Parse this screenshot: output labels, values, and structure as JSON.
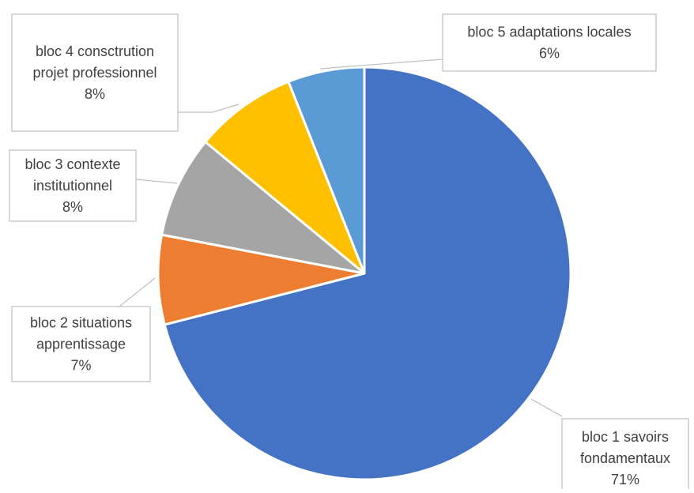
{
  "chart_data": {
    "type": "pie",
    "title": "",
    "slices": [
      {
        "label_lines": [
          "bloc 1 savoirs",
          "fondamentaux"
        ],
        "percent_label": "71%",
        "value": 71,
        "color": "#4472C4"
      },
      {
        "label_lines": [
          "bloc 2 situations",
          "apprentissage"
        ],
        "percent_label": "7%",
        "value": 7,
        "color": "#ED7D31"
      },
      {
        "label_lines": [
          "bloc 3 contexte",
          "institutionnel"
        ],
        "percent_label": "8%",
        "value": 8,
        "color": "#A5A5A5"
      },
      {
        "label_lines": [
          "bloc 4 consctrution",
          "projet professionnel"
        ],
        "percent_label": "8%",
        "value": 8,
        "color": "#FFC000"
      },
      {
        "label_lines": [
          "bloc 5 adaptations locales"
        ],
        "percent_label": "6%",
        "value": 6,
        "color": "#5B9BD5"
      }
    ],
    "start_angle": "12 o'clock",
    "direction": "clockwise",
    "legend": "none",
    "data_labels": "callouts"
  }
}
